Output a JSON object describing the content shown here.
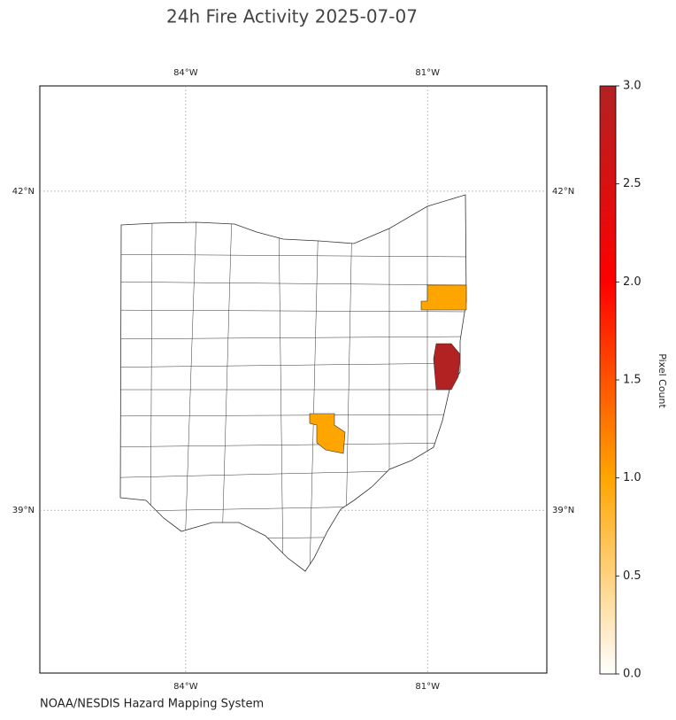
{
  "chart_data": {
    "type": "choropleth",
    "title": "24h Fire Activity 2025-07-07",
    "xlim": [
      -85.81,
      -79.52
    ],
    "ylim": [
      37.47,
      42.99
    ],
    "xticks": [
      {
        "value": -84,
        "label": "84°W"
      },
      {
        "value": -81,
        "label": "81°W"
      }
    ],
    "yticks": [
      {
        "value": 42,
        "label": "42°N"
      },
      {
        "value": 39,
        "label": "39°N"
      }
    ],
    "grid": true,
    "values": [
      1,
      3,
      1
    ],
    "colorbar": {
      "label": "Pixel Count",
      "lim": [
        0,
        3
      ],
      "ticks": [
        {
          "value": 0,
          "label": "0.0"
        },
        {
          "value": 0.5,
          "label": "0.5"
        },
        {
          "value": 1,
          "label": "1.0"
        },
        {
          "value": 1.5,
          "label": "1.5"
        },
        {
          "value": 2,
          "label": "2.0"
        },
        {
          "value": 2.5,
          "label": "2.5"
        },
        {
          "value": 3,
          "label": "3.0"
        }
      ],
      "colors": [
        "#ffffff",
        "#ffa500",
        "#ff0000",
        "#b22222"
      ]
    },
    "source": "NOAA/NESDIS Hazard Mapping System"
  }
}
